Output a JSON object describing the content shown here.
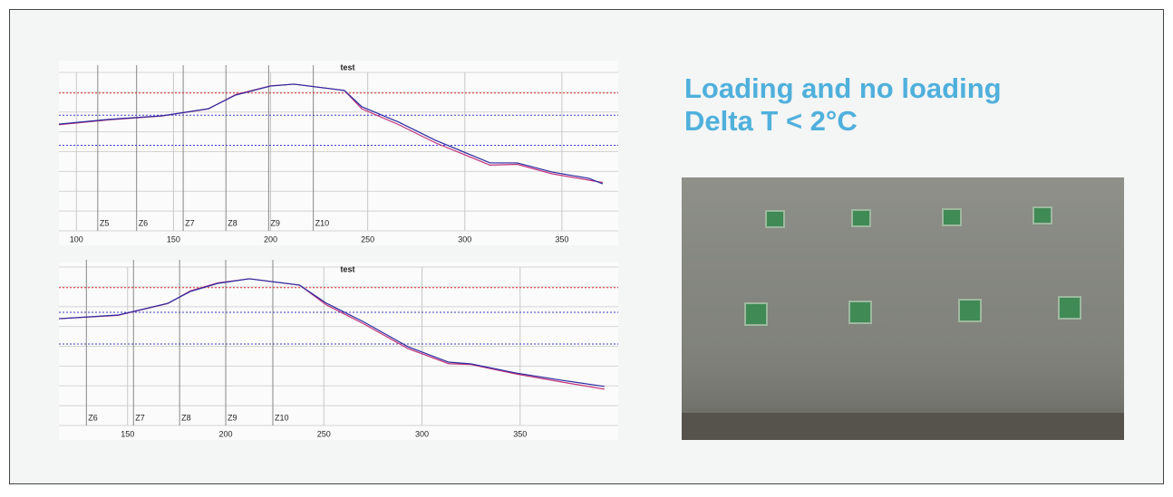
{
  "heading": [
    "Loading and no loading",
    "Delta T < 2°C"
  ],
  "chart_data": [
    {
      "type": "line",
      "title": "test",
      "xlim": [
        91,
        379
      ],
      "xticks": [
        100,
        150,
        200,
        250,
        300,
        350
      ],
      "ylim": [
        0,
        100
      ],
      "reference_lines": [
        {
          "value": 87,
          "color": "#e03030"
        },
        {
          "value": 73,
          "color": "#3a3ad0"
        },
        {
          "value": 54,
          "color": "#3a3ad0"
        }
      ],
      "zones": [
        {
          "label": "Z5",
          "x": 111
        },
        {
          "label": "Z6",
          "x": 131
        },
        {
          "label": "Z7",
          "x": 155
        },
        {
          "label": "Z8",
          "x": 177
        },
        {
          "label": "Z9",
          "x": 199
        },
        {
          "label": "Z10",
          "x": 222
        }
      ],
      "x": [
        91,
        116,
        144,
        168,
        182,
        200,
        212,
        238,
        247,
        266,
        285,
        313,
        327,
        345,
        364,
        371
      ],
      "series": [
        {
          "color": "#c0307a",
          "values": [
            67,
            70,
            72.5,
            77,
            86,
            91.5,
            92.6,
            88.6,
            77,
            67,
            55.5,
            41.5,
            42,
            36,
            32,
            30.5
          ]
        },
        {
          "color": "#2a2aa0",
          "values": [
            67.4,
            70.3,
            72.6,
            77.1,
            85.7,
            91.4,
            92.6,
            88.6,
            78.3,
            68.6,
            57.1,
            42.9,
            42.9,
            37.1,
            33.1,
            29.7
          ]
        }
      ]
    },
    {
      "type": "line",
      "title": "test",
      "xlim": [
        115,
        400
      ],
      "xticks": [
        150,
        200,
        250,
        300,
        350
      ],
      "ylim": [
        0,
        100
      ],
      "reference_lines": [
        {
          "value": 87,
          "color": "#e03030"
        },
        {
          "value": 71.4,
          "color": "#3a3ad0"
        },
        {
          "value": 51.4,
          "color": "#3a3ad0"
        }
      ],
      "zones": [
        {
          "label": "Z6",
          "x": 129
        },
        {
          "label": "Z7",
          "x": 153
        },
        {
          "label": "Z8",
          "x": 176.5
        },
        {
          "label": "Z9",
          "x": 200
        },
        {
          "label": "Z10",
          "x": 224
        }
      ],
      "x": [
        115,
        145,
        170.5,
        182,
        196,
        212,
        237.6,
        251.4,
        269.8,
        292.9,
        313.6,
        325,
        348,
        371,
        393
      ],
      "series": [
        {
          "color": "#c0307a",
          "values": [
            67.4,
            69.5,
            77,
            85,
            90,
            92.6,
            88.6,
            76,
            64.5,
            48.5,
            39,
            38.5,
            32.5,
            27.5,
            22.9
          ]
        },
        {
          "color": "#2a2aa0",
          "values": [
            67.4,
            69.7,
            77.1,
            84.6,
            89.7,
            92.6,
            88.6,
            77.1,
            65.7,
            49.7,
            40,
            38.9,
            33.1,
            28.6,
            24.6
          ]
        }
      ]
    }
  ]
}
